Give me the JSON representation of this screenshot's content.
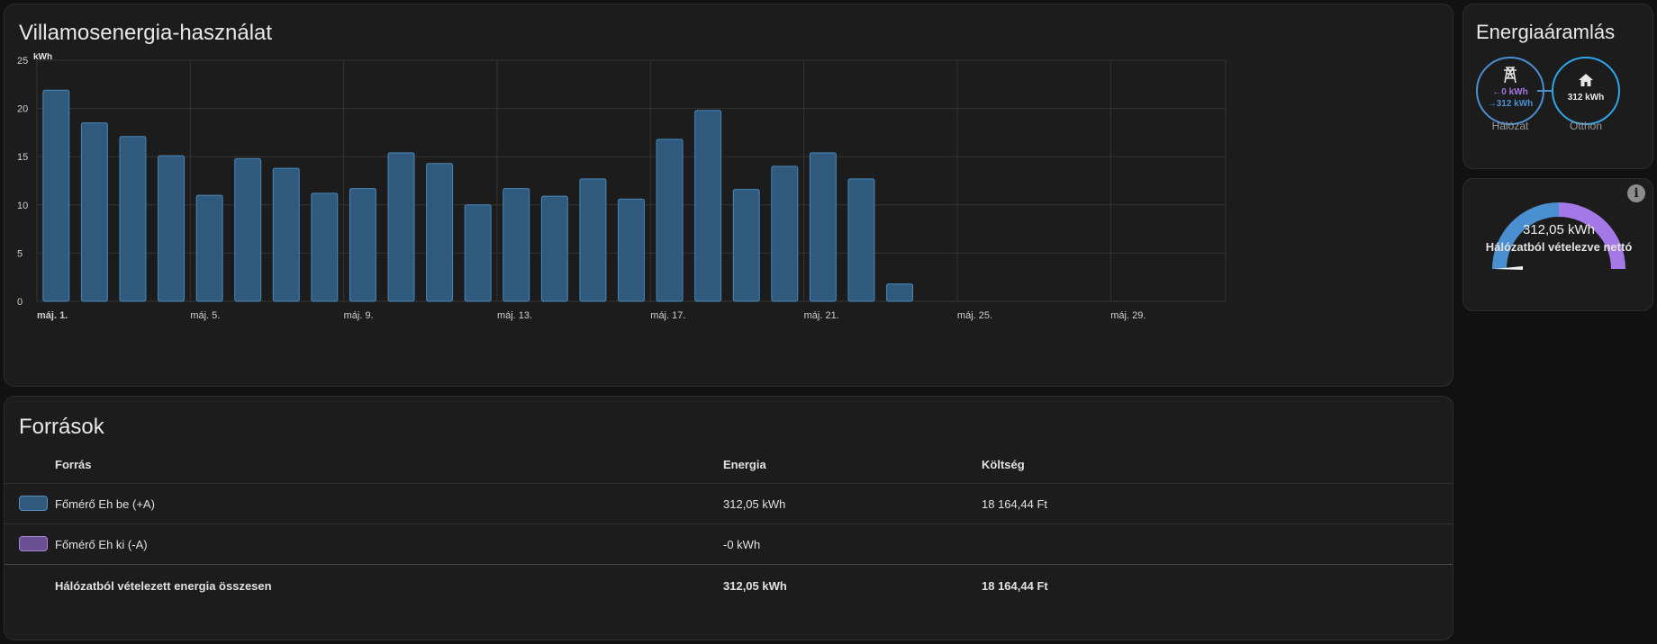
{
  "usage": {
    "title": "Villamosenergia-használat",
    "chart_data": {
      "type": "bar",
      "ylabel": "kWh",
      "ylim": [
        0,
        25
      ],
      "yticks": [
        0,
        5,
        10,
        15,
        20,
        25
      ],
      "x_tick_labels": [
        {
          "day": 1,
          "label": "máj. 1.",
          "bold": true
        },
        {
          "day": 5,
          "label": "máj. 5."
        },
        {
          "day": 9,
          "label": "máj. 9."
        },
        {
          "day": 13,
          "label": "máj. 13."
        },
        {
          "day": 17,
          "label": "máj. 17."
        },
        {
          "day": 21,
          "label": "máj. 21."
        },
        {
          "day": 25,
          "label": "máj. 25."
        },
        {
          "day": 29,
          "label": "máj. 29."
        }
      ],
      "days_in_range": 31,
      "series": [
        {
          "color": "#2f5a7d",
          "stroke": "#4a86b8",
          "values": [
            21.9,
            18.5,
            17.1,
            15.1,
            11.0,
            14.8,
            13.8,
            11.2,
            11.7,
            15.4,
            14.3,
            10.0,
            11.7,
            10.9,
            12.7,
            10.6,
            16.8,
            19.8,
            11.6,
            14.0,
            15.4,
            12.7,
            1.8
          ]
        }
      ]
    }
  },
  "sources": {
    "title": "Források",
    "headers": {
      "source": "Forrás",
      "energy": "Energia",
      "cost": "Költség"
    },
    "rows": [
      {
        "name": "Főmérő Eh be (+A)",
        "energy": "312,05 kWh",
        "cost": "18 164,44 Ft",
        "color": "#2f5a7d",
        "border": "#5b8fbf"
      },
      {
        "name": "Főmérő Eh ki (-A)",
        "energy": "-0 kWh",
        "cost": "",
        "color": "#6a4f93",
        "border": "#a486d8"
      }
    ],
    "total": {
      "name": "Hálózatból vételezett energia összesen",
      "energy": "312,05 kWh",
      "cost": "18 164,44 Ft"
    }
  },
  "flow": {
    "title": "Energiaáramlás",
    "grid": {
      "label": "Hálózat",
      "export": "0 kWh",
      "import": "312 kWh",
      "export_arrow": "←",
      "import_arrow": "→",
      "icon": "transmission-tower-icon"
    },
    "home": {
      "label": "Otthon",
      "value": "312 kWh",
      "icon": "home-icon"
    },
    "colors": {
      "grid": "#4a8fd0",
      "home": "#2fa6e8",
      "export": "#a478e6",
      "import": "#4a8fd0"
    }
  },
  "gauge": {
    "value_text": "312,05 kWh",
    "label": "Hálózatból vételezve nettó",
    "fraction_import": 0.5,
    "colors": {
      "import": "#4a8fd0",
      "export": "#a478e6"
    }
  }
}
